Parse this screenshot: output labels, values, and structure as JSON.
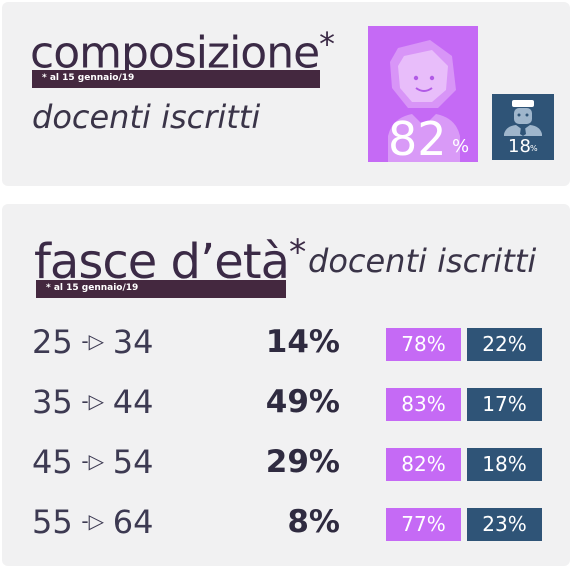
{
  "composition": {
    "title": "composizione",
    "star": "*",
    "note": "* al 15 gennaio/19",
    "subtitle": "docenti iscritti",
    "female_pct": "82",
    "male_pct": "18",
    "pct_sign": "%",
    "colors": {
      "female": "#c56af5",
      "male": "#2f5477"
    },
    "icons": {
      "female": "woman-icon",
      "male": "man-icon"
    }
  },
  "age_bands": {
    "title": "fasce d’età",
    "star": "*",
    "subtitle": "docenti iscritti",
    "note": "* al 15 gennaio/19",
    "rows": [
      {
        "from": "25",
        "to": "34",
        "share": "14%",
        "female": "78%",
        "male": "22%"
      },
      {
        "from": "35",
        "to": "44",
        "share": "49%",
        "female": "83%",
        "male": "17%"
      },
      {
        "from": "45",
        "to": "54",
        "share": "29%",
        "female": "82%",
        "male": "18%"
      },
      {
        "from": "55",
        "to": "64",
        "share": "8%",
        "female": "77%",
        "male": "23%"
      }
    ]
  }
}
